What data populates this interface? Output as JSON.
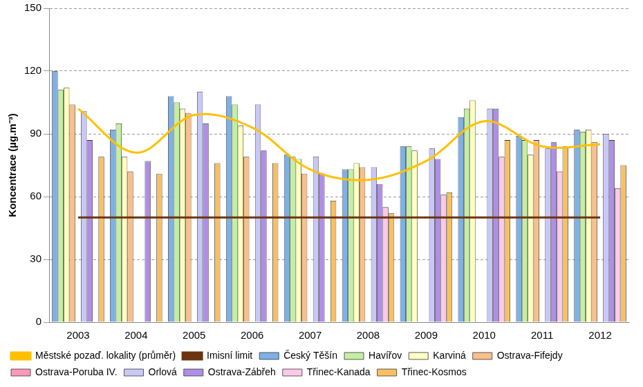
{
  "chart_data": {
    "type": "bar",
    "y_label": "Koncentrace (µg.m⁻³)",
    "categories": [
      "2003",
      "2004",
      "2005",
      "2006",
      "2007",
      "2008",
      "2009",
      "2010",
      "2011",
      "2012"
    ],
    "series": [
      {
        "name": "Český Těšín",
        "color": "#7fb0e6",
        "values": [
          120,
          92,
          108,
          108,
          80,
          73,
          84,
          98,
          89,
          92
        ]
      },
      {
        "name": "Havířov",
        "color": "#c4eea4",
        "values": [
          111,
          95,
          105,
          104,
          79,
          73,
          84,
          102,
          87,
          91
        ]
      },
      {
        "name": "Karviná",
        "color": "#ffffc4",
        "values": [
          112,
          79,
          102,
          94,
          78,
          76,
          82,
          106,
          80,
          92
        ]
      },
      {
        "name": "Ostrava-Fifejdy",
        "color": "#f8c08c",
        "values": [
          104,
          72,
          100,
          79,
          71,
          74,
          null,
          null,
          87,
          86
        ]
      },
      {
        "name": "Ostrava-Poruba IV.",
        "color": "#ff99bb",
        "values": [
          null,
          null,
          null,
          null,
          null,
          null,
          null,
          null,
          null,
          null
        ]
      },
      {
        "name": "Orlová",
        "color": "#c8c8f8",
        "values": [
          101,
          null,
          110,
          104,
          79,
          74,
          83,
          102,
          83,
          90
        ]
      },
      {
        "name": "Ostrava-Zábřeh",
        "color": "#b08ee8",
        "values": [
          87,
          77,
          95,
          82,
          71,
          66,
          78,
          102,
          86,
          87
        ]
      },
      {
        "name": "Třinec-Kanada",
        "color": "#ffc8e8",
        "values": [
          null,
          null,
          null,
          null,
          null,
          55,
          61,
          79,
          72,
          64
        ]
      },
      {
        "name": "Třinec-Kosmos",
        "color": "#f8c060",
        "values": [
          79,
          71,
          76,
          76,
          58,
          52,
          62,
          87,
          84,
          75
        ]
      },
      {
        "name": "Městské pozaď. lokality (průměr)",
        "type": "line",
        "color": "#ffc000",
        "values": [
          102,
          81,
          99,
          93,
          73,
          68,
          77,
          96,
          84,
          85
        ]
      },
      {
        "name": "Imisní limit",
        "type": "line",
        "color": "#6b3510",
        "values": [
          50,
          50,
          50,
          50,
          50,
          50,
          50,
          50,
          50,
          50
        ]
      }
    ],
    "ylim": [
      0,
      150
    ],
    "yticks": [
      0,
      30,
      60,
      90,
      120,
      150
    ],
    "grid": true,
    "legend": "bottom"
  }
}
